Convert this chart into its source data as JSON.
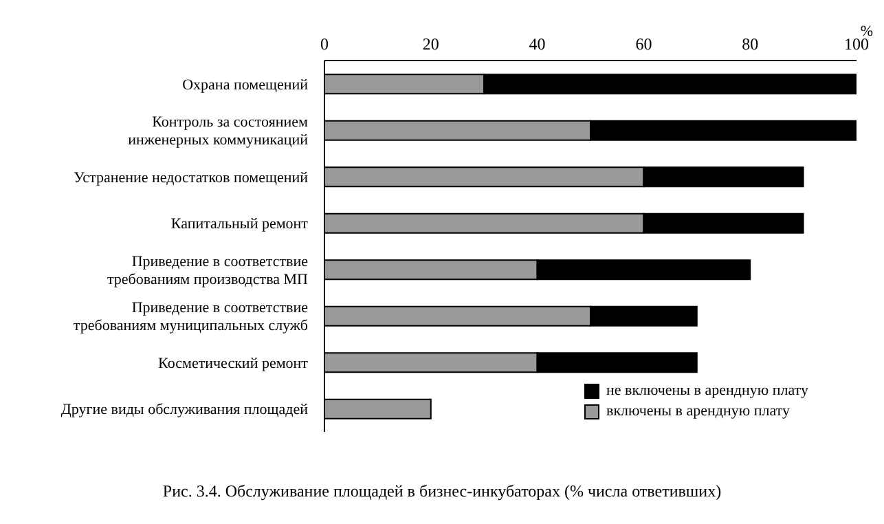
{
  "chart_data": {
    "type": "bar",
    "orientation": "horizontal",
    "stacked": true,
    "title": "Рис. 3.4. Обслуживание площадей в бизнес-инкубаторах (% числа ответивших)",
    "xlabel": "%",
    "categories": [
      "Охрана помещений",
      "Контроль за состоянием\nинженерных коммуникаций",
      "Устранение недостатков помещений",
      "Капитальный ремонт",
      "Приведение в соответствие\nтребованиям производства МП",
      "Приведение в соответствие\nтребованиям муниципальных служб",
      "Косметический ремонт",
      "Другие виды обслуживания площадей"
    ],
    "series": [
      {
        "name": "включены в арендную плату",
        "color": "#9a9a9a",
        "values": [
          30,
          50,
          60,
          60,
          40,
          50,
          40,
          20
        ]
      },
      {
        "name": "не включены в арендную плату",
        "color": "#000000",
        "values": [
          70,
          50,
          30,
          30,
          40,
          20,
          30,
          null
        ]
      }
    ],
    "xlim": [
      0,
      100
    ],
    "xticks": [
      0,
      20,
      40,
      60,
      80,
      100
    ],
    "legend": "bottom right"
  }
}
